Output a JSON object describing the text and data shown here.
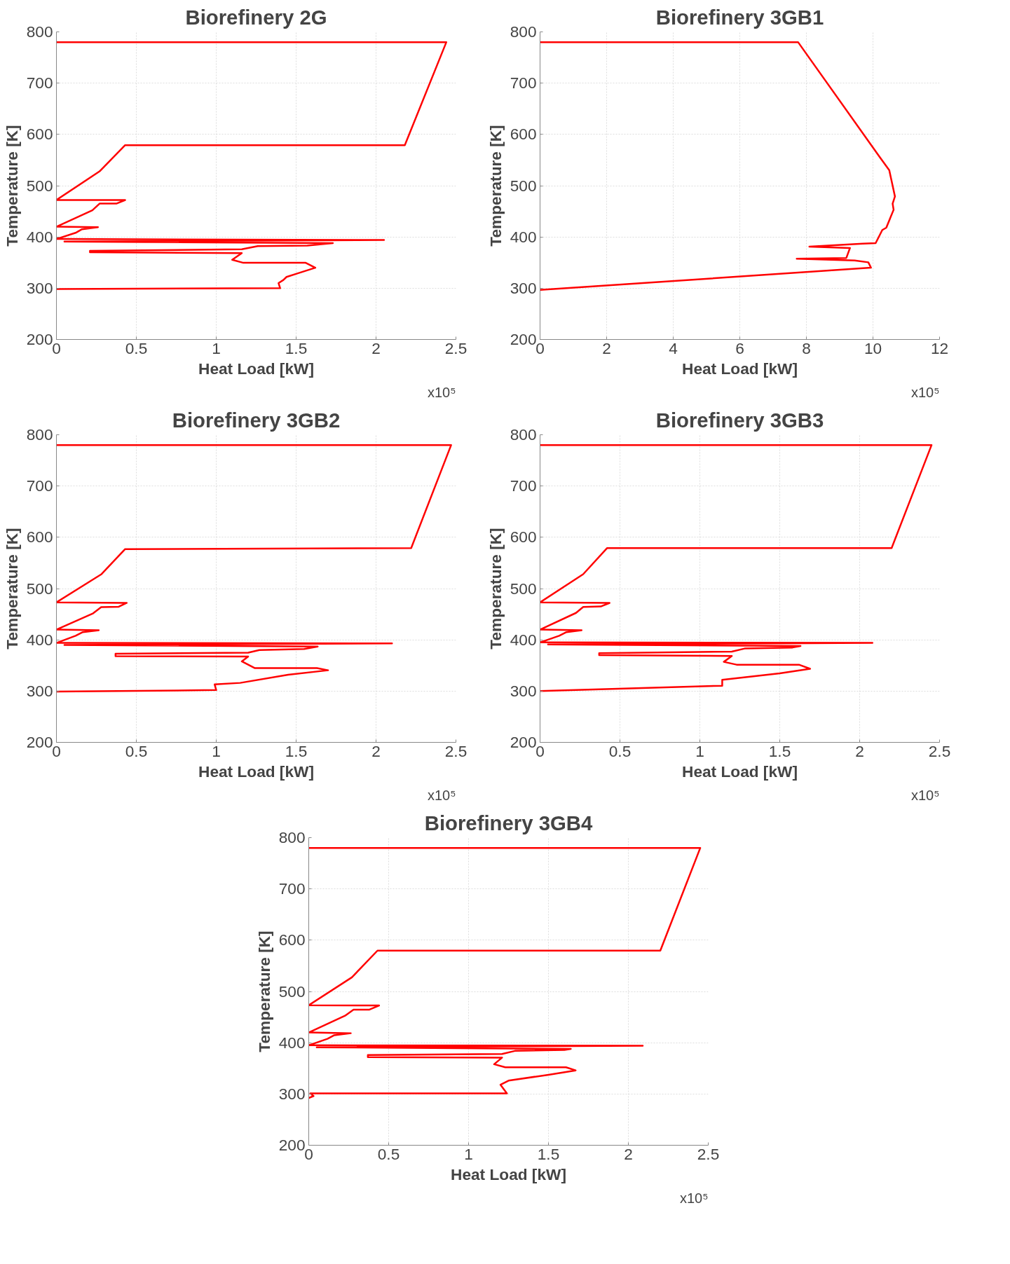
{
  "chart_data": [
    {
      "type": "line",
      "title": "Biorefinery 2G",
      "xlabel": "Heat Load [kW]",
      "ylabel": "Temperature [K]",
      "annotations": [
        "x10⁵"
      ],
      "xlim": [
        0,
        2.5
      ],
      "ylim": [
        200,
        800
      ],
      "xticks": [
        0,
        0.5,
        1,
        1.5,
        2,
        2.5
      ],
      "yticks": [
        200,
        300,
        400,
        500,
        600,
        700,
        800
      ],
      "grid": true,
      "series": [
        {
          "color": "#ff0000",
          "x": [
            0,
            2.44,
            2.18,
            0.43,
            0.27,
            0,
            0.43,
            0.375,
            0.27,
            0.225,
            0,
            0.26,
            0.16,
            0.12,
            0,
            2.05,
            0.05,
            1.73,
            1.57,
            1.26,
            1.16,
            0.21,
            0.21,
            1.16,
            1.1,
            1.17,
            1.56,
            1.62,
            1.51,
            1.44,
            1.42,
            1.39,
            1.4,
            0
          ],
          "values": [
            780,
            780,
            579,
            579,
            528,
            472,
            472,
            465,
            465,
            452,
            420,
            419,
            415,
            408,
            396,
            394,
            391,
            388,
            383,
            382,
            376,
            373,
            370,
            368.5,
            355.5,
            349.5,
            349.5,
            340,
            329,
            322,
            316,
            310,
            300,
            298.5
          ]
        }
      ]
    },
    {
      "type": "line",
      "title": "Biorefinery 3GB1",
      "xlabel": "Heat Load [kW]",
      "ylabel": "Temperature [K]",
      "annotations": [
        "x10⁵"
      ],
      "xlim": [
        0,
        12
      ],
      "ylim": [
        200,
        800
      ],
      "xticks": [
        0,
        2,
        4,
        6,
        8,
        10,
        12
      ],
      "yticks": [
        200,
        300,
        400,
        500,
        600,
        700,
        800
      ],
      "grid": true,
      "series": [
        {
          "color": "#ff0000",
          "x": [
            0,
            7.75,
            10.2,
            10.49,
            10.66,
            10.59,
            10.62,
            10.4,
            10.28,
            10.08,
            9.69,
            8.09,
            9.31,
            9.2,
            7.71,
            9.45,
            9.86,
            9.94,
            0
          ],
          "values": [
            780,
            780,
            556,
            530,
            479,
            465,
            453,
            418,
            413.6,
            388,
            387,
            381,
            378.5,
            359,
            357.5,
            354,
            350.5,
            340,
            296.7
          ]
        }
      ]
    },
    {
      "type": "line",
      "title": "Biorefinery 3GB2",
      "xlabel": "Heat Load [kW]",
      "ylabel": "Temperature [K]",
      "annotations": [
        "x10⁵"
      ],
      "xlim": [
        0,
        2.5
      ],
      "ylim": [
        200,
        800
      ],
      "xticks": [
        0,
        0.5,
        1,
        1.5,
        2,
        2.5
      ],
      "yticks": [
        200,
        300,
        400,
        500,
        600,
        700,
        800
      ],
      "grid": true,
      "series": [
        {
          "color": "#ff0000",
          "x": [
            0,
            2.47,
            2.22,
            0.43,
            0.28,
            0,
            0.44,
            0.39,
            0.28,
            0.23,
            0,
            0.265,
            0.165,
            0.12,
            0,
            2.1,
            0.05,
            1.635,
            1.55,
            1.27,
            1.2,
            0.37,
            0.37,
            1.2,
            1.16,
            1.24,
            1.63,
            1.7,
            1.45,
            1.15,
            0.99,
            1.0,
            0
          ],
          "values": [
            780,
            780,
            579,
            577,
            527.6,
            473,
            472,
            464.6,
            463.7,
            451.7,
            420,
            418.6,
            415,
            408,
            394,
            393,
            390,
            387,
            382,
            380,
            375,
            373,
            368,
            367.5,
            358,
            345,
            345,
            340.6,
            332,
            316,
            313,
            302,
            299
          ]
        }
      ]
    },
    {
      "type": "line",
      "title": "Biorefinery 3GB3",
      "xlabel": "Heat Load [kW]",
      "ylabel": "Temperature [K]",
      "annotations": [
        "x10⁵"
      ],
      "xlim": [
        0,
        2.5
      ],
      "ylim": [
        200,
        800
      ],
      "xticks": [
        0,
        0.5,
        1,
        1.5,
        2,
        2.5
      ],
      "yticks": [
        200,
        300,
        400,
        500,
        600,
        700,
        800
      ],
      "grid": true,
      "series": [
        {
          "color": "#ff0000",
          "x": [
            0,
            2.45,
            2.2,
            0.42,
            0.27,
            0,
            0.435,
            0.38,
            0.27,
            0.225,
            0,
            0.26,
            0.165,
            0.12,
            0,
            2.08,
            0.05,
            1.63,
            1.58,
            1.28,
            1.2,
            0.37,
            0.37,
            1.2,
            1.15,
            1.23,
            1.62,
            1.69,
            1.5,
            1.14,
            1.14,
            0
          ],
          "values": [
            780,
            780,
            579,
            579,
            528,
            473,
            472,
            465,
            464,
            452.5,
            420,
            418.6,
            415,
            408,
            395,
            394,
            391,
            388,
            385,
            383,
            377,
            374,
            370,
            368.5,
            357,
            351.5,
            351.5,
            343.5,
            334.5,
            322,
            310.5,
            300
          ]
        }
      ]
    },
    {
      "type": "line",
      "title": "Biorefinery 3GB4",
      "xlabel": "Heat Load [kW]",
      "ylabel": "Temperature [K]",
      "annotations": [
        "x10⁵"
      ],
      "xlim": [
        0,
        2.5
      ],
      "ylim": [
        200,
        800
      ],
      "xticks": [
        0,
        0.5,
        1,
        1.5,
        2,
        2.5
      ],
      "yticks": [
        200,
        300,
        400,
        500,
        600,
        700,
        800
      ],
      "grid": true,
      "series": [
        {
          "color": "#ff0000",
          "x": [
            0,
            2.45,
            2.2,
            0.43,
            0.27,
            0,
            0.44,
            0.38,
            0.28,
            0.227,
            0,
            0.263,
            0.16,
            0.117,
            0,
            2.09,
            0.05,
            1.64,
            1.6,
            1.29,
            1.21,
            0.37,
            0.37,
            1.21,
            1.16,
            1.23,
            1.61,
            1.67,
            1.5,
            1.25,
            1.2,
            1.24,
            0.01,
            0.03,
            0
          ],
          "values": [
            780,
            780,
            579.6,
            579.6,
            527.5,
            473,
            472.5,
            464.5,
            464.5,
            452.6,
            420,
            418.5,
            414.7,
            407.6,
            395,
            394,
            391,
            388,
            386,
            384,
            378,
            376,
            372,
            371,
            358,
            352,
            352,
            346,
            337.5,
            326,
            318,
            301,
            301,
            296,
            292
          ]
        }
      ]
    }
  ]
}
